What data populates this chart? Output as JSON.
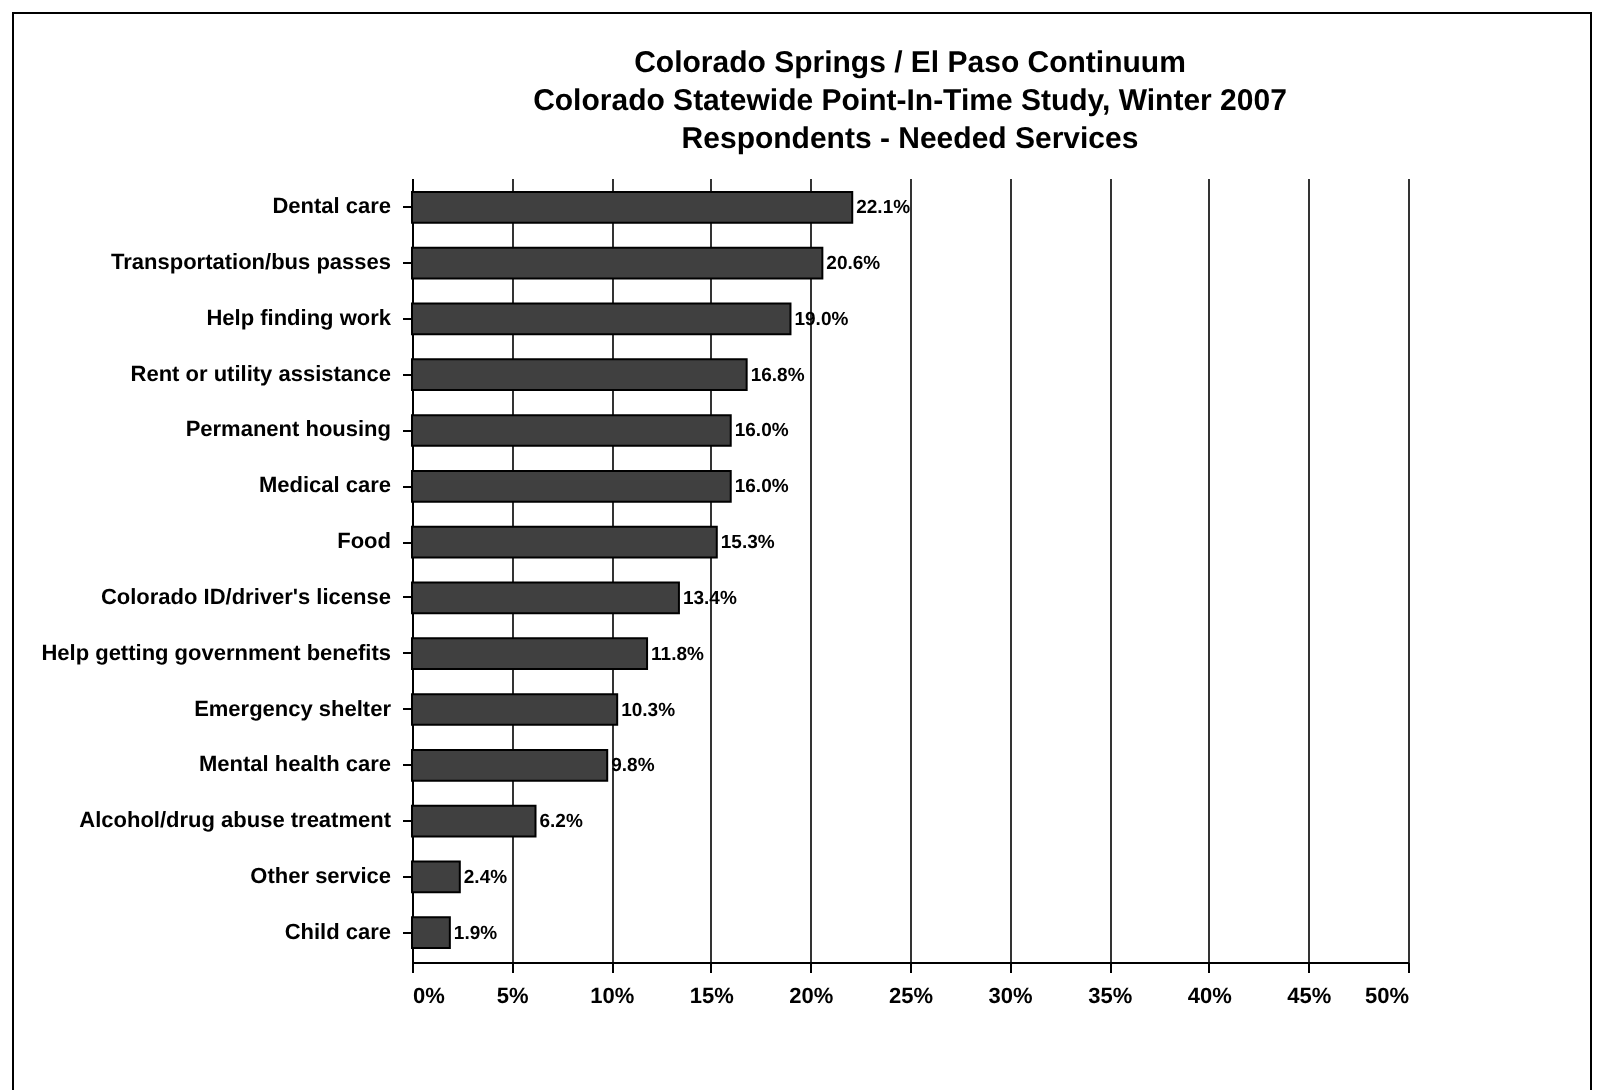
{
  "chart_data": {
    "type": "bar",
    "orientation": "horizontal",
    "title": "Colorado Springs / El Paso Continuum\nColorado Statewide Point-In-Time Study, Winter 2007\nRespondents - Needed Services",
    "categories": [
      "Dental care",
      "Transportation/bus passes",
      "Help finding work",
      "Rent or utility assistance",
      "Permanent housing",
      "Medical care",
      "Food",
      "Colorado ID/driver's license",
      "Help getting government benefits",
      "Emergency shelter",
      "Mental health care",
      "Alcohol/drug abuse treatment",
      "Other service",
      "Child care"
    ],
    "values": [
      22.1,
      20.6,
      19.0,
      16.8,
      16.0,
      16.0,
      15.3,
      13.4,
      11.8,
      10.3,
      9.8,
      6.2,
      2.4,
      1.9
    ],
    "value_labels": [
      "22.1%",
      "20.6%",
      "19.0%",
      "16.8%",
      "16.0%",
      "16.0%",
      "15.3%",
      "13.4%",
      "11.8%",
      "10.3%",
      "9.8%",
      "6.2%",
      "2.4%",
      "1.9%"
    ],
    "color": "#404040",
    "xlim": [
      0,
      50
    ],
    "xticks": [
      {
        "value": 0,
        "label": "0%"
      },
      {
        "value": 5,
        "label": "5%"
      },
      {
        "value": 10,
        "label": "10%"
      },
      {
        "value": 15,
        "label": "15%"
      },
      {
        "value": 20,
        "label": "20%"
      },
      {
        "value": 25,
        "label": "25%"
      },
      {
        "value": 30,
        "label": "30%"
      },
      {
        "value": 35,
        "label": "35%"
      },
      {
        "value": 40,
        "label": "40%"
      },
      {
        "value": 45,
        "label": "45%"
      },
      {
        "value": 50,
        "label": "50%"
      }
    ],
    "grid": "x"
  }
}
